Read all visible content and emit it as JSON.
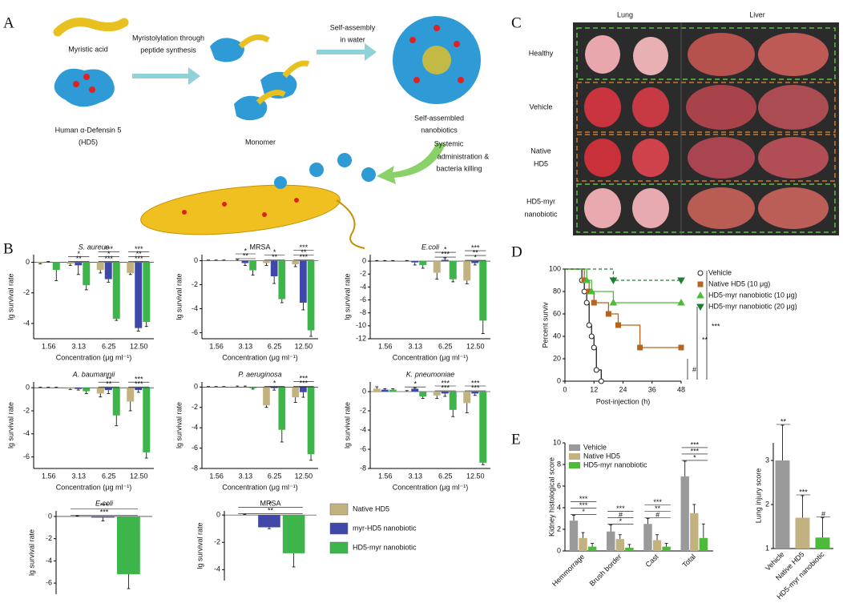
{
  "panel_a": {
    "letter": "A",
    "labels": [
      "Myristic acid",
      "Human  α-Defensin 5",
      "(HD5)",
      "Myristolylation through",
      "peptide synthesis",
      "Monomer",
      "Self-assembly",
      "in water",
      "Self-assembled",
      "nanobiotics",
      "Systemic",
      "administration &",
      "bacteria killing"
    ]
  },
  "panel_c": {
    "letter": "C",
    "columns": [
      "Lung",
      "Liver"
    ],
    "rows": [
      [
        "Healthy"
      ],
      [
        "Vehicle"
      ],
      [
        "Native",
        "HD5"
      ],
      [
        "HD5-myr",
        "nanobiotic"
      ]
    ]
  },
  "panel_b": {
    "letter": "B"
  },
  "panel_d": {
    "letter": "D"
  },
  "panel_e": {
    "letter": "E"
  },
  "chart_data": [
    {
      "type": "bar",
      "title": "S. aureus",
      "categories": [
        "1.56",
        "3.13",
        "6.25",
        "12.50"
      ],
      "xlabel": "Concentration (μg ml⁻¹)",
      "ylabel": "lg survival rate",
      "ylim": [
        -5,
        0.5
      ],
      "yticks": [
        0,
        -2,
        -4
      ],
      "series": [
        {
          "name": "Native HD5",
          "color": "#c2b280",
          "values": [
            -0.05,
            -0.1,
            -0.5,
            -0.7
          ],
          "errors": [
            0.05,
            0.1,
            0.2,
            0.1
          ]
        },
        {
          "name": "myr-HD5 nanobiotic",
          "color": "#3f48a8",
          "values": [
            0,
            -0.2,
            -1.1,
            -4.3
          ],
          "errors": [
            0.05,
            0.6,
            0.2,
            0.2
          ]
        },
        {
          "name": "HD5-myr nanobiotic",
          "color": "#3db54a",
          "values": [
            -0.5,
            -1.5,
            -3.7,
            -3.9
          ],
          "errors": [
            0.7,
            0.3,
            0.1,
            0.3
          ]
        }
      ],
      "annotations": [
        {
          "label": "**",
          "category": 1
        },
        {
          "label": "*",
          "category": 1
        },
        {
          "label": "***",
          "category": 2
        },
        {
          "label": "*",
          "category": 2
        },
        {
          "label": "***",
          "category": 2
        },
        {
          "label": "***",
          "category": 3
        },
        {
          "label": "**",
          "category": 3
        },
        {
          "label": "***",
          "category": 3
        }
      ]
    },
    {
      "type": "bar",
      "title": "MRSA",
      "categories": [
        "1.56",
        "3.13",
        "6.25",
        "12.50"
      ],
      "xlabel": "Concentration (μg ml⁻¹)",
      "ylabel": "lg survival rate",
      "ylim": [
        -6.5,
        0.5
      ],
      "yticks": [
        0,
        -2,
        -4,
        -6
      ],
      "series": [
        {
          "name": "Native HD5",
          "color": "#c2b280",
          "values": [
            0,
            0,
            -0.2,
            -0.3
          ],
          "errors": [
            0.05,
            0.1,
            0.2,
            0.2
          ]
        },
        {
          "name": "myr-HD5 nanobiotic",
          "color": "#3f48a8",
          "values": [
            0,
            -0.2,
            -1.3,
            -3.5
          ],
          "errors": [
            0.05,
            0.2,
            0.6,
            0.6
          ]
        },
        {
          "name": "HD5-myr nanobiotic",
          "color": "#3db54a",
          "values": [
            0,
            -0.8,
            -3.2,
            -5.8
          ],
          "errors": [
            0.05,
            0.4,
            0.3,
            0.5
          ]
        }
      ],
      "annotations": [
        {
          "label": "**",
          "category": 1
        },
        {
          "label": "*",
          "category": 1
        },
        {
          "label": "**",
          "category": 2
        },
        {
          "label": "*",
          "category": 2
        },
        {
          "label": "***",
          "category": 3
        },
        {
          "label": "**",
          "category": 3
        },
        {
          "label": "***",
          "category": 3
        }
      ]
    },
    {
      "type": "bar",
      "title": "E.coli",
      "categories": [
        "1.56",
        "3.13",
        "6.25",
        "12.50"
      ],
      "xlabel": "Concentration (μg ml⁻¹)",
      "ylabel": "lg survival rate",
      "ylim": [
        -12,
        1
      ],
      "yticks": [
        0,
        -2,
        -4,
        -6,
        -8,
        -10,
        -12
      ],
      "series": [
        {
          "name": "Native HD5",
          "color": "#c2b280",
          "values": [
            0,
            0,
            -1.8,
            -3
          ],
          "errors": [
            0.1,
            0.1,
            1,
            0.5
          ]
        },
        {
          "name": "myr-HD5 nanobiotic",
          "color": "#3f48a8",
          "values": [
            0,
            -0.2,
            0.2,
            -0.3
          ],
          "errors": [
            0.1,
            0.4,
            0.3,
            0.3
          ]
        },
        {
          "name": "HD5-myr nanobiotic",
          "color": "#3db54a",
          "values": [
            0,
            -0.6,
            -2.8,
            -9.2
          ],
          "errors": [
            0.1,
            0.5,
            0.4,
            2
          ]
        }
      ],
      "annotations": [
        {
          "label": "***",
          "category": 2
        },
        {
          "label": "*",
          "category": 2
        },
        {
          "label": "*",
          "category": 3
        },
        {
          "label": "**",
          "category": 3
        },
        {
          "label": "***",
          "category": 3
        }
      ]
    },
    {
      "type": "bar",
      "title": "A. baumannii",
      "categories": [
        "1.56",
        "3.13",
        "6.25",
        "12.50"
      ],
      "xlabel": "Concentration (μg ml⁻¹)",
      "ylabel": "lg survival rate",
      "ylim": [
        -7,
        0.5
      ],
      "yticks": [
        0,
        -2,
        -4,
        -6
      ],
      "series": [
        {
          "name": "Native HD5",
          "color": "#c2b280",
          "values": [
            0,
            -0.05,
            -0.5,
            -1.2
          ],
          "errors": [
            0.05,
            0.1,
            0.3,
            0.8
          ]
        },
        {
          "name": "myr-HD5 nanobiotic",
          "color": "#3f48a8",
          "values": [
            0,
            -0.1,
            -0.2,
            -0.2
          ],
          "errors": [
            0.05,
            0.1,
            0.3,
            0.2
          ]
        },
        {
          "name": "HD5-myr nanobiotic",
          "color": "#3db54a",
          "values": [
            0,
            -0.3,
            -2.4,
            -5.6
          ],
          "errors": [
            0.05,
            0.2,
            0.9,
            0.5
          ]
        }
      ],
      "annotations": [
        {
          "label": "**",
          "category": 2
        },
        {
          "label": "**",
          "category": 2
        },
        {
          "label": "***",
          "category": 3
        },
        {
          "label": "***",
          "category": 3
        }
      ]
    },
    {
      "type": "bar",
      "title": "P. aeruginosa",
      "categories": [
        "1.56",
        "3.13",
        "6.25",
        "12.50"
      ],
      "xlabel": "Concentration (μg ml⁻¹)",
      "ylabel": "lg survival rate",
      "ylim": [
        -8,
        0.5
      ],
      "yticks": [
        0,
        -2,
        -4,
        -6,
        -8
      ],
      "series": [
        {
          "name": "Native HD5",
          "color": "#c2b280",
          "values": [
            0,
            0,
            -1.8,
            -1
          ],
          "errors": [
            0.05,
            0.1,
            0.2,
            0.5
          ]
        },
        {
          "name": "myr-HD5 nanobiotic",
          "color": "#3f48a8",
          "values": [
            0,
            0,
            -0.1,
            -0.5
          ],
          "errors": [
            0.05,
            0.1,
            0.2,
            0.5
          ]
        },
        {
          "name": "HD5-myr nanobiotic",
          "color": "#3db54a",
          "values": [
            0,
            -0.1,
            -4.2,
            -6.6
          ],
          "errors": [
            0.05,
            0.1,
            1.2,
            0.6
          ]
        }
      ],
      "annotations": [
        {
          "label": "*",
          "category": 2
        },
        {
          "label": "***",
          "category": 3
        },
        {
          "label": "***",
          "category": 3
        }
      ]
    },
    {
      "type": "bar",
      "title": "K. pneumoniae",
      "categories": [
        "1.56",
        "3.13",
        "6.25",
        "12.50"
      ],
      "xlabel": "Concentration (μg ml⁻¹)",
      "ylabel": "lg survival rate",
      "ylim": [
        -8,
        1
      ],
      "yticks": [
        0,
        -2,
        -4,
        -6,
        -8
      ],
      "series": [
        {
          "name": "Native HD5",
          "color": "#c2b280",
          "values": [
            0.3,
            0,
            -0.4,
            -1.2
          ],
          "errors": [
            0.2,
            0.1,
            0.3,
            1
          ]
        },
        {
          "name": "myr-HD5 nanobiotic",
          "color": "#3f48a8",
          "values": [
            0.2,
            0.3,
            -0.2,
            -0.2
          ],
          "errors": [
            0.1,
            0.1,
            0.3,
            0.2
          ]
        },
        {
          "name": "HD5-myr nanobiotic",
          "color": "#3db54a",
          "values": [
            0.2,
            -0.5,
            -1.9,
            -7.4
          ],
          "errors": [
            0.1,
            0.2,
            0.7,
            0.2
          ]
        }
      ],
      "annotations": [
        {
          "label": "*",
          "category": 1
        },
        {
          "label": "***",
          "category": 2
        },
        {
          "label": "***",
          "category": 2
        },
        {
          "label": "***",
          "category": 3
        },
        {
          "label": "***",
          "category": 3
        }
      ]
    },
    {
      "type": "bar",
      "title": "E.coli",
      "categories": [
        null
      ],
      "ylabel": "lg survival rate",
      "ylim": [
        -7,
        0.5
      ],
      "yticks": [
        0,
        -2,
        -4,
        -6
      ],
      "series": [
        {
          "name": "Native HD5",
          "color": "#c2b280",
          "values": [
            0
          ],
          "errors": [
            0.05
          ]
        },
        {
          "name": "myr-HD5 nanobiotic",
          "color": "#3f48a8",
          "values": [
            -0.1
          ],
          "errors": [
            0.3
          ]
        },
        {
          "name": "HD5-myr nanobiotic",
          "color": "#3db54a",
          "values": [
            -5.2
          ],
          "errors": [
            1.3
          ]
        }
      ],
      "annotations": [
        {
          "label": "***",
          "category": 0
        },
        {
          "label": "***",
          "category": 0
        }
      ]
    },
    {
      "type": "bar",
      "title": "MRSA",
      "categories": [
        null
      ],
      "ylabel": "lg survival rate",
      "ylim": [
        -4.8,
        0.3
      ],
      "yticks": [
        0,
        -2,
        -4
      ],
      "series": [
        {
          "name": "Native HD5",
          "color": "#c2b280",
          "values": [
            0
          ],
          "errors": [
            0.05
          ]
        },
        {
          "name": "myr-HD5 nanobiotic",
          "color": "#3f48a8",
          "values": [
            -0.9
          ],
          "errors": [
            0.1
          ]
        },
        {
          "name": "HD5-myr nanobiotic",
          "color": "#3db54a",
          "values": [
            -2.8
          ],
          "errors": [
            1
          ]
        }
      ],
      "annotations": [
        {
          "label": "**",
          "category": 0
        },
        {
          "label": "*",
          "category": 0
        }
      ]
    },
    {
      "type": "line",
      "xlabel": "Post-injection (h)",
      "ylabel": "Percent surviv",
      "xlim": [
        0,
        48
      ],
      "xticks": [
        0,
        12,
        24,
        36,
        48
      ],
      "ylim": [
        0,
        100
      ],
      "yticks": [
        0,
        20,
        40,
        60,
        80,
        100
      ],
      "series": [
        {
          "name": "Vehicle",
          "color": "#222222",
          "marker": "circle",
          "line_style": "solid",
          "x": [
            0,
            7,
            8,
            9,
            10,
            11,
            12,
            13,
            15
          ],
          "values": [
            100,
            90,
            80,
            70,
            50,
            40,
            30,
            10,
            0
          ]
        },
        {
          "name": "Native HD5 (10 μg)",
          "color": "#b5651d",
          "marker": "square",
          "line_style": "solid",
          "x": [
            0,
            8,
            10,
            12,
            18,
            22,
            31,
            48
          ],
          "values": [
            100,
            90,
            80,
            70,
            60,
            50,
            30,
            30
          ]
        },
        {
          "name": "HD5-myr nanobiotic (10 μg)",
          "color": "#4cbb3a",
          "marker": "triangle-up",
          "line_style": "solid",
          "x": [
            0,
            9,
            11,
            20,
            48
          ],
          "values": [
            100,
            90,
            80,
            70,
            70
          ]
        },
        {
          "name": "HD5-myr nanobiotic (20 μg)",
          "color": "#1e7d32",
          "marker": "triangle-down",
          "line_style": "dashed",
          "x": [
            0,
            20,
            48
          ],
          "values": [
            100,
            90,
            90
          ]
        }
      ],
      "annotations": [
        {
          "label": "***"
        },
        {
          "label": "**"
        },
        {
          "label": "#"
        }
      ]
    },
    {
      "type": "bar",
      "ylabel": "Kidney histological score",
      "categories": [
        "Hemmorrage",
        "Brush border",
        "Cast",
        "Total"
      ],
      "ylim": [
        0,
        10
      ],
      "yticks": [
        0,
        2,
        4,
        6,
        8,
        10
      ],
      "series": [
        {
          "name": "Vehicle",
          "color": "#9a9a9a",
          "values": [
            2.8,
            1.8,
            2.5,
            6.9
          ],
          "errors": [
            0.5,
            0.6,
            0.5,
            1.4
          ]
        },
        {
          "name": "Native HD5",
          "color": "#c2b280",
          "values": [
            1.2,
            1.1,
            1.0,
            3.5
          ],
          "errors": [
            0.5,
            0.4,
            0.5,
            0.8
          ]
        },
        {
          "name": "HD5-myr nanobiotic",
          "color": "#4cbb3a",
          "values": [
            0.4,
            0.3,
            0.4,
            1.2
          ],
          "errors": [
            0.3,
            0.3,
            0.3,
            1.3
          ]
        }
      ],
      "annotations": [
        {
          "label": "*",
          "category": 0
        },
        {
          "label": "***",
          "category": 0
        },
        {
          "label": "***",
          "category": 0
        },
        {
          "label": "*",
          "category": 1
        },
        {
          "label": "#",
          "category": 1
        },
        {
          "label": "***",
          "category": 1
        },
        {
          "label": "#",
          "category": 2
        },
        {
          "label": "**",
          "category": 2
        },
        {
          "label": "***",
          "category": 2
        },
        {
          "label": "*",
          "category": 3
        },
        {
          "label": "***",
          "category": 3
        },
        {
          "label": "***",
          "category": 3
        }
      ]
    },
    {
      "type": "bar",
      "ylabel": "Lung injury score",
      "categories": [
        "Vehicle",
        "Native HD5",
        "HD5-myr nanobiotic"
      ],
      "ylim": [
        1,
        3.4
      ],
      "yticks": [
        1,
        2,
        3
      ],
      "values": [
        3.0,
        1.7,
        1.25
      ],
      "errors": [
        0.8,
        0.5,
        0.45
      ],
      "colors": [
        "#9a9a9a",
        "#c2b280",
        "#4cbb3a"
      ],
      "annotations": [
        {
          "label": "#",
          "category": 2
        },
        {
          "label": "**",
          "category": 0
        },
        {
          "label": "***",
          "category": 1
        }
      ]
    }
  ]
}
